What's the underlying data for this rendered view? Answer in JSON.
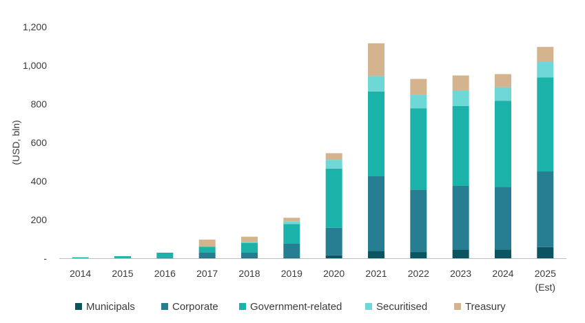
{
  "chart_data": {
    "type": "bar",
    "stacked": true,
    "title": "",
    "xlabel": "",
    "ylabel": "(USD, bln)",
    "ylim": [
      0,
      1200
    ],
    "yticks": [
      0,
      200,
      400,
      600,
      800,
      1000,
      1200
    ],
    "ytick_labels": [
      "-",
      "200",
      "400",
      "600",
      "800",
      "1,000",
      "1,200"
    ],
    "categories": [
      "2014",
      "2015",
      "2016",
      "2017",
      "2018",
      "2019",
      "2020",
      "2021",
      "2022",
      "2023",
      "2024",
      "2025"
    ],
    "category_sublabels": [
      "",
      "",
      "",
      "",
      "",
      "",
      "",
      "",
      "",
      "",
      "",
      "(Est)"
    ],
    "grid": false,
    "legend_position": "bottom",
    "series": [
      {
        "name": "Municipals",
        "color": "#0c5560",
        "values": [
          0,
          0,
          1,
          3,
          3,
          3,
          15,
          38,
          32,
          45,
          45,
          58
        ]
      },
      {
        "name": "Corporate",
        "color": "#277e93",
        "values": [
          0,
          1,
          3,
          27,
          27,
          72,
          143,
          387,
          323,
          330,
          325,
          392
        ]
      },
      {
        "name": "Government-related",
        "color": "#1bb3a9",
        "values": [
          5,
          10,
          25,
          30,
          50,
          102,
          307,
          440,
          423,
          415,
          447,
          488
        ]
      },
      {
        "name": "Securitised",
        "color": "#6dd8d6",
        "values": [
          0,
          0,
          0,
          0,
          5,
          15,
          45,
          80,
          70,
          78,
          70,
          80
        ]
      },
      {
        "name": "Treasury",
        "color": "#d4b48f",
        "values": [
          0,
          0,
          0,
          37,
          27,
          18,
          35,
          170,
          82,
          80,
          68,
          78
        ]
      }
    ]
  }
}
